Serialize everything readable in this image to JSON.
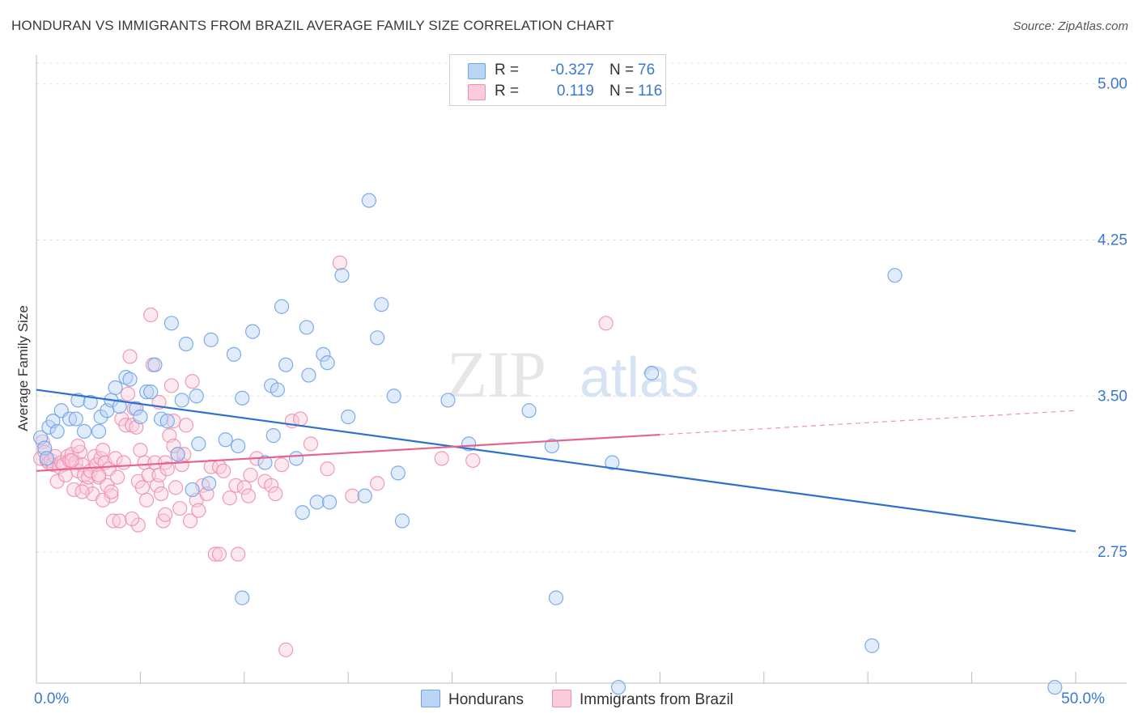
{
  "header": {
    "title": "HONDURAN VS IMMIGRANTS FROM BRAZIL AVERAGE FAMILY SIZE CORRELATION CHART",
    "source": "Source: ZipAtlas.com"
  },
  "colors": {
    "series_a": "#6fa3e8",
    "series_a_fill": "#bcd5f5",
    "series_a_line": "#2e6fd0",
    "series_b": "#ef8fb0",
    "series_b_fill": "#f9cbdc",
    "series_b_line": "#e5648f",
    "value_text": "#3a78d2",
    "grid": "#e3e3e3"
  },
  "legend": {
    "rows": [
      {
        "r_label": "R =",
        "r_value": "-0.327",
        "n_label": "N =",
        "n_value": "76"
      },
      {
        "r_label": "R =",
        "r_value": "0.119",
        "n_label": "N =",
        "n_value": "116"
      }
    ]
  },
  "bottom_legend": {
    "series_a": "Hondurans",
    "series_b": "Immigrants from Brazil"
  },
  "watermark": {
    "zip": "ZIP",
    "atlas": "atlas"
  },
  "chart_data": {
    "type": "scatter",
    "title": "HONDURAN VS IMMIGRANTS FROM BRAZIL AVERAGE FAMILY SIZE CORRELATION CHART",
    "xlabel": "",
    "ylabel": "Average Family Size",
    "xlim": [
      0,
      50
    ],
    "ylim": [
      2.12,
      5.1
    ],
    "x_tick_labels": [
      {
        "value": 0,
        "label": "0.0%"
      },
      {
        "value": 50,
        "label": "50.0%"
      }
    ],
    "y_ticks": [
      {
        "value": 2.75,
        "label": "2.75"
      },
      {
        "value": 3.5,
        "label": "3.50"
      },
      {
        "value": 4.25,
        "label": "4.25"
      },
      {
        "value": 5.0,
        "label": "5.00"
      }
    ],
    "grid": true,
    "legend_position": "top-center",
    "series": [
      {
        "name": "Hondurans",
        "r": -0.327,
        "n": 76,
        "trend": {
          "x": [
            0,
            50
          ],
          "y": [
            3.53,
            2.85
          ],
          "dashed_from": null
        },
        "points": [
          [
            0.2,
            3.3
          ],
          [
            0.4,
            3.25
          ],
          [
            0.5,
            3.2
          ],
          [
            0.6,
            3.35
          ],
          [
            0.8,
            3.38
          ],
          [
            1.0,
            3.33
          ],
          [
            1.2,
            3.43
          ],
          [
            1.6,
            3.39
          ],
          [
            1.9,
            3.39
          ],
          [
            2.0,
            3.48
          ],
          [
            2.3,
            3.33
          ],
          [
            2.6,
            3.47
          ],
          [
            3.0,
            3.33
          ],
          [
            3.1,
            3.4
          ],
          [
            3.4,
            3.43
          ],
          [
            3.6,
            3.48
          ],
          [
            3.8,
            3.54
          ],
          [
            4.0,
            3.45
          ],
          [
            4.3,
            3.59
          ],
          [
            4.5,
            3.58
          ],
          [
            4.8,
            3.44
          ],
          [
            5.0,
            3.4
          ],
          [
            5.3,
            3.52
          ],
          [
            5.5,
            3.52
          ],
          [
            5.7,
            3.65
          ],
          [
            6.0,
            3.39
          ],
          [
            6.3,
            3.38
          ],
          [
            6.5,
            3.85
          ],
          [
            6.8,
            3.22
          ],
          [
            7.0,
            3.48
          ],
          [
            7.2,
            3.75
          ],
          [
            7.5,
            3.05
          ],
          [
            7.7,
            3.5
          ],
          [
            7.8,
            3.27
          ],
          [
            8.3,
            3.08
          ],
          [
            8.4,
            3.77
          ],
          [
            9.1,
            3.29
          ],
          [
            9.5,
            3.7
          ],
          [
            9.7,
            3.26
          ],
          [
            9.9,
            3.49
          ],
          [
            9.9,
            2.53
          ],
          [
            10.4,
            3.81
          ],
          [
            11.0,
            3.18
          ],
          [
            11.3,
            3.55
          ],
          [
            11.4,
            3.31
          ],
          [
            11.6,
            3.53
          ],
          [
            11.8,
            3.93
          ],
          [
            12.0,
            3.65
          ],
          [
            12.5,
            3.2
          ],
          [
            12.8,
            2.94
          ],
          [
            13.0,
            3.83
          ],
          [
            13.1,
            3.6
          ],
          [
            13.5,
            2.99
          ],
          [
            13.8,
            3.7
          ],
          [
            14.0,
            3.66
          ],
          [
            14.1,
            2.99
          ],
          [
            14.7,
            4.08
          ],
          [
            15.0,
            3.4
          ],
          [
            15.8,
            3.02
          ],
          [
            16.0,
            4.44
          ],
          [
            16.4,
            3.78
          ],
          [
            16.6,
            3.94
          ],
          [
            17.2,
            3.5
          ],
          [
            17.4,
            3.13
          ],
          [
            17.6,
            2.9
          ],
          [
            19.8,
            3.48
          ],
          [
            20.8,
            3.27
          ],
          [
            23.7,
            3.43
          ],
          [
            24.8,
            3.26
          ],
          [
            25.0,
            2.53
          ],
          [
            27.7,
            3.18
          ],
          [
            28.0,
            2.1
          ],
          [
            29.6,
            3.61
          ],
          [
            40.2,
            2.3
          ],
          [
            41.3,
            4.08
          ],
          [
            49.0,
            2.1
          ]
        ]
      },
      {
        "name": "Immigrants from Brazil",
        "r": 0.119,
        "n": 116,
        "trend": {
          "x": [
            0,
            50
          ],
          "y": [
            3.14,
            3.43
          ],
          "dashed_from": 30.0
        },
        "points": [
          [
            0.2,
            3.2
          ],
          [
            0.3,
            3.28
          ],
          [
            0.4,
            3.23
          ],
          [
            0.5,
            3.19
          ],
          [
            0.6,
            3.18
          ],
          [
            0.7,
            3.19
          ],
          [
            0.8,
            3.17
          ],
          [
            0.9,
            3.21
          ],
          [
            1.0,
            3.09
          ],
          [
            1.1,
            3.16
          ],
          [
            1.2,
            3.18
          ],
          [
            1.3,
            3.17
          ],
          [
            1.5,
            3.21
          ],
          [
            1.6,
            3.19
          ],
          [
            1.7,
            3.22
          ],
          [
            1.8,
            3.05
          ],
          [
            1.9,
            3.18
          ],
          [
            2.0,
            3.14
          ],
          [
            2.1,
            3.23
          ],
          [
            2.2,
            3.17
          ],
          [
            2.3,
            3.12
          ],
          [
            2.4,
            3.06
          ],
          [
            2.5,
            3.11
          ],
          [
            2.6,
            3.14
          ],
          [
            2.7,
            3.03
          ],
          [
            2.8,
            3.21
          ],
          [
            2.9,
            3.17
          ],
          [
            3.0,
            3.11
          ],
          [
            3.1,
            3.2
          ],
          [
            3.2,
            3.24
          ],
          [
            3.3,
            3.18
          ],
          [
            3.4,
            3.07
          ],
          [
            3.5,
            3.15
          ],
          [
            3.6,
            3.02
          ],
          [
            3.7,
            2.9
          ],
          [
            3.8,
            3.2
          ],
          [
            3.9,
            3.11
          ],
          [
            4.0,
            2.9
          ],
          [
            4.1,
            3.39
          ],
          [
            4.2,
            3.18
          ],
          [
            4.3,
            3.36
          ],
          [
            4.4,
            3.51
          ],
          [
            4.5,
            3.69
          ],
          [
            4.6,
            3.36
          ],
          [
            4.7,
            3.44
          ],
          [
            4.8,
            3.35
          ],
          [
            4.9,
            3.09
          ],
          [
            5.0,
            3.24
          ],
          [
            5.1,
            3.06
          ],
          [
            5.2,
            3.18
          ],
          [
            5.3,
            3.0
          ],
          [
            5.4,
            3.12
          ],
          [
            5.5,
            3.89
          ],
          [
            5.6,
            3.65
          ],
          [
            5.7,
            3.18
          ],
          [
            5.8,
            3.07
          ],
          [
            5.9,
            3.12
          ],
          [
            6.0,
            3.03
          ],
          [
            6.1,
            2.9
          ],
          [
            6.2,
            3.18
          ],
          [
            6.3,
            3.15
          ],
          [
            6.4,
            3.31
          ],
          [
            6.5,
            3.55
          ],
          [
            6.6,
            3.38
          ],
          [
            6.7,
            3.06
          ],
          [
            6.8,
            3.22
          ],
          [
            6.9,
            2.96
          ],
          [
            7.0,
            3.17
          ],
          [
            7.2,
            3.36
          ],
          [
            7.4,
            2.9
          ],
          [
            7.5,
            3.57
          ],
          [
            7.7,
            3.0
          ],
          [
            7.8,
            2.95
          ],
          [
            8.0,
            3.07
          ],
          [
            8.2,
            3.03
          ],
          [
            8.4,
            3.16
          ],
          [
            8.6,
            2.74
          ],
          [
            8.8,
            3.16
          ],
          [
            9.0,
            3.14
          ],
          [
            9.3,
            3.01
          ],
          [
            9.6,
            3.07
          ],
          [
            10.0,
            3.06
          ],
          [
            10.3,
            3.12
          ],
          [
            10.6,
            3.2
          ],
          [
            11.0,
            3.09
          ],
          [
            11.3,
            3.07
          ],
          [
            11.8,
            3.17
          ],
          [
            12.0,
            2.28
          ],
          [
            12.3,
            3.38
          ],
          [
            12.7,
            3.39
          ],
          [
            13.2,
            3.27
          ],
          [
            14.0,
            3.15
          ],
          [
            14.6,
            4.14
          ],
          [
            15.2,
            3.02
          ],
          [
            16.4,
            3.08
          ],
          [
            19.5,
            3.2
          ],
          [
            21.0,
            3.19
          ],
          [
            27.4,
            3.85
          ],
          [
            6.6,
            3.26
          ],
          [
            3.0,
            3.12
          ],
          [
            2.0,
            3.26
          ],
          [
            1.4,
            3.12
          ],
          [
            4.9,
            2.88
          ],
          [
            8.8,
            2.74
          ],
          [
            6.2,
            2.93
          ],
          [
            7.1,
            3.22
          ],
          [
            3.2,
            3.0
          ],
          [
            1.7,
            3.19
          ],
          [
            5.9,
            3.47
          ],
          [
            9.7,
            2.74
          ],
          [
            10.2,
            3.02
          ],
          [
            2.2,
            3.04
          ],
          [
            4.6,
            2.91
          ],
          [
            3.6,
            3.04
          ],
          [
            11.5,
            3.03
          ]
        ]
      }
    ]
  }
}
